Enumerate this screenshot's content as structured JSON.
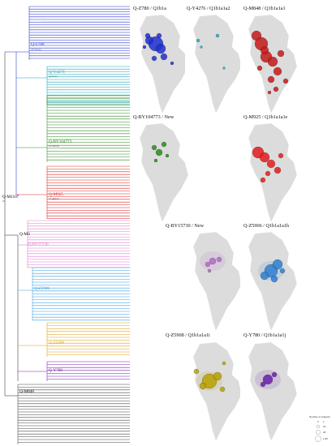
{
  "tree": {
    "root_label": "Q-M1107",
    "nodes": {
      "z780": {
        "label": "Q-Z780",
        "age": "23,516 ka",
        "color": "#2233cc"
      },
      "y4276": {
        "label": "Q-Y4276",
        "age": "4,614 ka",
        "color": "#19a3b8"
      },
      "m3": {
        "label": "Q-M3",
        "age": "",
        "color": "#333333"
      },
      "by104773": {
        "label": "Q-BY104773",
        "age": "16,549 ka",
        "color": "#2e8b22"
      },
      "m925": {
        "label": "Q-M925",
        "age": "13,444 ka",
        "color": "#dd2222"
      },
      "by15730": {
        "label": "Q-BY15730",
        "age": "",
        "color": "#e07ad0"
      },
      "z5906": {
        "label": "Q-Z5906",
        "age": "",
        "color": "#3a9de0"
      },
      "z5908": {
        "label": "Q-Z5908",
        "age": "",
        "color": "#e0a010"
      },
      "y780": {
        "label": "Q-Y780",
        "age": "",
        "color": "#7a1fb0"
      },
      "m848": {
        "label": "Q-M848",
        "age": "",
        "color": "#333333"
      }
    }
  },
  "maps": [
    {
      "title": "Q-Z780 / Q1b1a",
      "color": "#1f2fd0"
    },
    {
      "title": "Q-Y4276 / Q1b1a1a2",
      "color": "#17b0c4"
    },
    {
      "title": "Q-M848 / Q1b1a1a1",
      "color": "#c41a1a"
    },
    {
      "title": "Q-BY104773 / New",
      "color": "#2a8a1e"
    },
    {
      "title": "Q-M925 / Q1b1a1a1e",
      "color": "#e31b1b"
    },
    {
      "title": "Q-BY15730 / New",
      "color": "#b66ac8"
    },
    {
      "title": "Q-Z5906 / Q1b1a1a1h",
      "color": "#2e7fd0"
    },
    {
      "title": "Q-Z5908 / Q1b1a1a1i",
      "color": "#b8a000"
    },
    {
      "title": "Q-Y780 / Q1b1a1a1j",
      "color": "#6a1fa8"
    }
  ],
  "legend": {
    "title": "Number of subjects",
    "entries": [
      "1",
      "10",
      "20",
      "≥ 30"
    ]
  }
}
